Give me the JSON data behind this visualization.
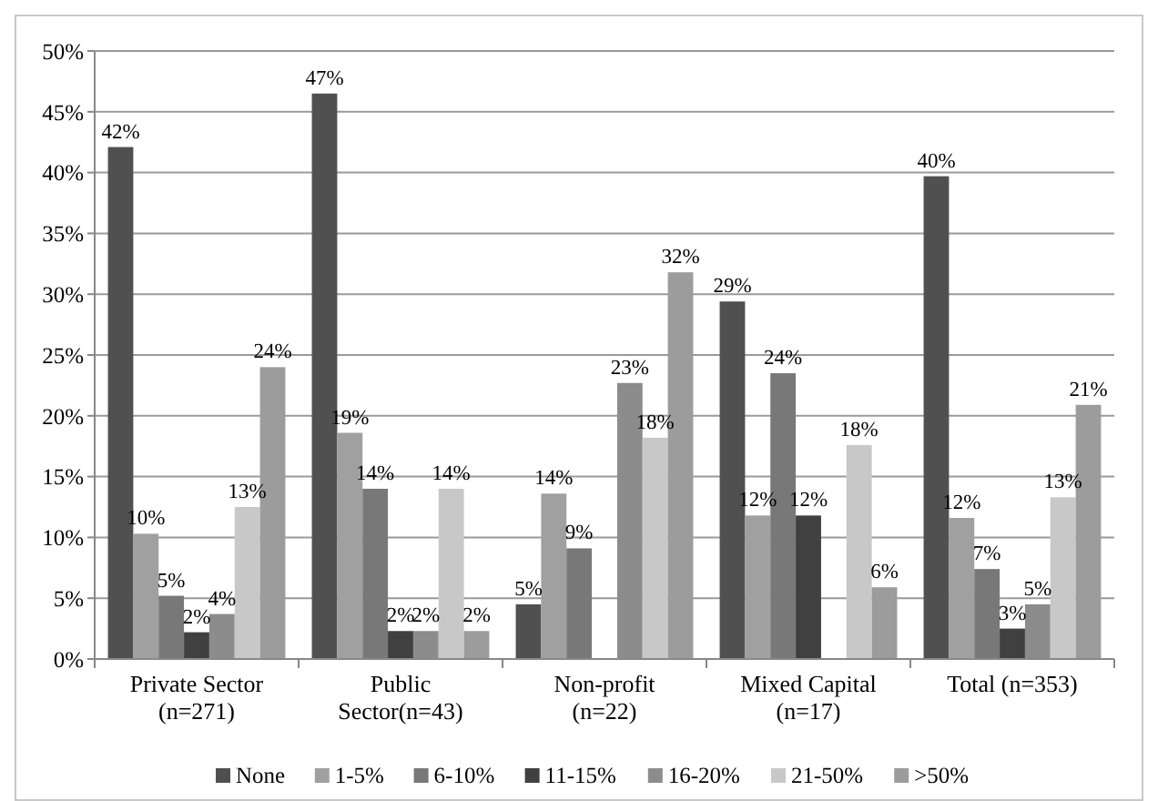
{
  "chart_data": {
    "type": "bar",
    "categories": [
      "Private Sector (n=271)",
      "Public Sector(n=43)",
      "Non-profit (n=22)",
      "Mixed Capital (n=17)",
      "Total (n=353)"
    ],
    "series": [
      {
        "name": "None",
        "color": "#505050",
        "values": [
          42.1,
          46.5,
          4.5,
          29.4,
          39.7
        ],
        "value_labels": [
          "42%",
          "47%",
          "5%",
          "29%",
          "40%"
        ]
      },
      {
        "name": "1-5%",
        "color": "#a0a0a0",
        "values": [
          10.3,
          18.6,
          13.6,
          11.8,
          11.6
        ],
        "value_labels": [
          "10%",
          "19%",
          "14%",
          "12%",
          "12%"
        ]
      },
      {
        "name": "6-10%",
        "color": "#787878",
        "values": [
          5.2,
          14.0,
          9.1,
          23.5,
          7.4
        ],
        "value_labels": [
          "5%",
          "14%",
          "9%",
          "24%",
          "7%"
        ]
      },
      {
        "name": "11-15%",
        "color": "#404040",
        "values": [
          2.2,
          2.3,
          null,
          11.8,
          2.5
        ],
        "value_labels": [
          "2%",
          "2%",
          null,
          "12%",
          "3%"
        ]
      },
      {
        "name": "16-20%",
        "color": "#8c8c8c",
        "values": [
          3.7,
          2.3,
          22.7,
          null,
          4.5
        ],
        "value_labels": [
          "4%",
          "2%",
          "23%",
          null,
          "5%"
        ]
      },
      {
        "name": "21-50%",
        "color": "#c8c8c8",
        "values": [
          12.5,
          14.0,
          18.2,
          17.6,
          13.3
        ],
        "value_labels": [
          "13%",
          "14%",
          "18%",
          "18%",
          "13%"
        ]
      },
      {
        "name": ">50%",
        "color": "#9c9c9c",
        "values": [
          24.0,
          2.3,
          31.8,
          5.9,
          20.9
        ],
        "value_labels": [
          "24%",
          "2%",
          "32%",
          "6%",
          "21%"
        ]
      }
    ],
    "ylim": [
      0,
      50
    ],
    "yticks": [
      {
        "value": 0,
        "label": "0%"
      },
      {
        "value": 5,
        "label": "5%"
      },
      {
        "value": 10,
        "label": "10%"
      },
      {
        "value": 15,
        "label": "15%"
      },
      {
        "value": 20,
        "label": "20%"
      },
      {
        "value": 25,
        "label": "25%"
      },
      {
        "value": 30,
        "label": "30%"
      },
      {
        "value": 35,
        "label": "35%"
      },
      {
        "value": 40,
        "label": "40%"
      },
      {
        "value": 45,
        "label": "45%"
      },
      {
        "value": 50,
        "label": "50%"
      }
    ],
    "grid": "y",
    "legend": "bottom"
  }
}
